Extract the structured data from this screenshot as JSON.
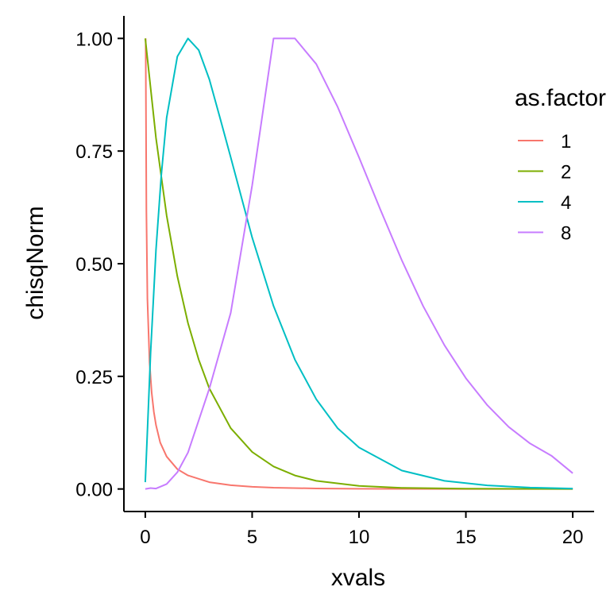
{
  "chart_data": {
    "type": "line",
    "title": "",
    "xlabel": "xvals",
    "ylabel": "chisqNorm",
    "xlim": [
      -1,
      21
    ],
    "ylim": [
      -0.05,
      1.05
    ],
    "xticks": [
      0,
      5,
      10,
      15,
      20
    ],
    "xtick_labels": [
      "0",
      "5",
      "10",
      "15",
      "20"
    ],
    "yticks": [
      0,
      0.25,
      0.5,
      0.75,
      1
    ],
    "ytick_labels": [
      "0.00",
      "0.25",
      "0.50",
      "0.75",
      "1.00"
    ],
    "grid": false,
    "legend": {
      "title": "as.factor",
      "position": "right"
    },
    "series": [
      {
        "name": "1",
        "color": "#F8766D",
        "x": [
          0.02,
          0.05,
          0.1,
          0.2,
          0.3,
          0.4,
          0.5,
          0.7,
          1,
          1.5,
          2,
          3,
          4,
          5,
          6,
          8,
          10,
          12,
          15,
          20
        ],
        "y": [
          1.0,
          0.617,
          0.422,
          0.281,
          0.213,
          0.171,
          0.142,
          0.103,
          0.072,
          0.044,
          0.03,
          0.015,
          0.0083,
          0.0048,
          0.0029,
          0.0011,
          0.0004,
          0.0002,
          0.0001,
          0.0
        ]
      },
      {
        "name": "2",
        "color": "#7CAE00",
        "x": [
          0,
          0.5,
          1,
          1.5,
          2,
          2.5,
          3,
          4,
          5,
          6,
          7,
          8,
          10,
          12,
          15,
          20
        ],
        "y": [
          1.0,
          0.779,
          0.607,
          0.472,
          0.368,
          0.287,
          0.223,
          0.135,
          0.082,
          0.05,
          0.03,
          0.018,
          0.0067,
          0.0025,
          0.0006,
          0.0
        ]
      },
      {
        "name": "4",
        "color": "#00BFC4",
        "x": [
          0,
          0.1,
          0.25,
          0.5,
          0.75,
          1,
          1.5,
          2,
          2.5,
          3,
          3.5,
          4,
          5,
          6,
          7,
          8,
          9,
          10,
          12,
          14,
          16,
          18,
          20
        ],
        "y": [
          0.015,
          0.129,
          0.302,
          0.531,
          0.697,
          0.824,
          0.96,
          1.0,
          0.974,
          0.909,
          0.823,
          0.736,
          0.558,
          0.406,
          0.287,
          0.199,
          0.135,
          0.092,
          0.041,
          0.018,
          0.008,
          0.003,
          0.001
        ]
      },
      {
        "name": "8",
        "color": "#C77CFF",
        "x": [
          0,
          0.25,
          0.5,
          1,
          1.5,
          2,
          3,
          4,
          5,
          6,
          7,
          8,
          9,
          10,
          11,
          12,
          13,
          14,
          15,
          16,
          17,
          18,
          19,
          20
        ],
        "y": [
          0.0,
          0.002,
          0.001,
          0.011,
          0.037,
          0.081,
          0.223,
          0.391,
          0.674,
          1.0,
          1.0,
          0.943,
          0.848,
          0.736,
          0.62,
          0.508,
          0.406,
          0.319,
          0.246,
          0.186,
          0.138,
          0.101,
          0.074,
          0.035
        ]
      }
    ]
  }
}
